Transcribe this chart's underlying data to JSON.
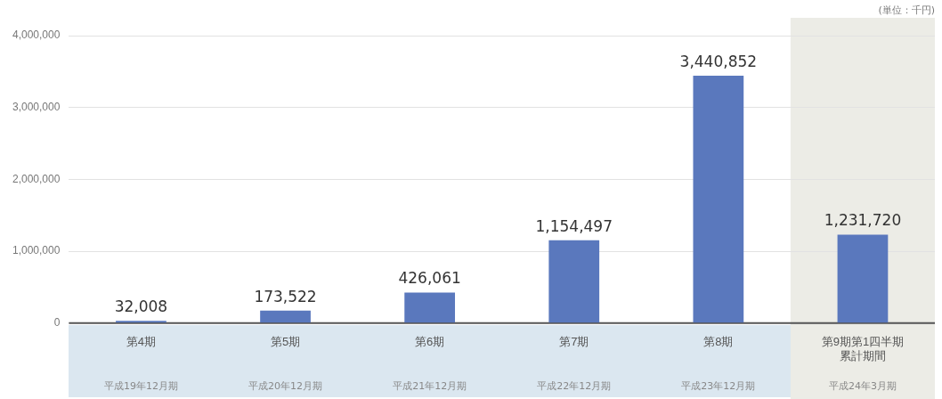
{
  "chart_data": {
    "type": "bar",
    "categories": [
      "第4期",
      "第5期",
      "第6期",
      "第7期",
      "第8期",
      "第9期第1四半期累計期間"
    ],
    "values": [
      32008,
      173522,
      426061,
      1154497,
      3440852,
      1231720
    ],
    "color": "#5a78bd",
    "value_labels": [
      "32,008",
      "173,522",
      "426,061",
      "1,154,497",
      "3,440,852",
      "1,231,720"
    ],
    "ylim": [
      0,
      4000000
    ],
    "yticks": [
      0,
      {
        "value": 1000000,
        "label": "1,000,000"
      },
      {
        "value": 2000000,
        "label": "2,000,000"
      },
      {
        "value": 3000000,
        "label": "3,000,000"
      },
      {
        "value": 4000000,
        "label": "4,000,000"
      }
    ],
    "grid": "y",
    "legend": false,
    "bands": [
      {
        "axis": "x",
        "from": "第9期第1四半期累計期間",
        "to": "第9期第1四半期累計期間",
        "color": "#ececE6"
      }
    ],
    "annotations": [
      "(単位：千円)",
      "平成19年12月期",
      "平成20年12月期",
      "平成21年12月期",
      "平成22年12月期",
      "平成23年12月期",
      "平成24年3月期"
    ]
  }
}
